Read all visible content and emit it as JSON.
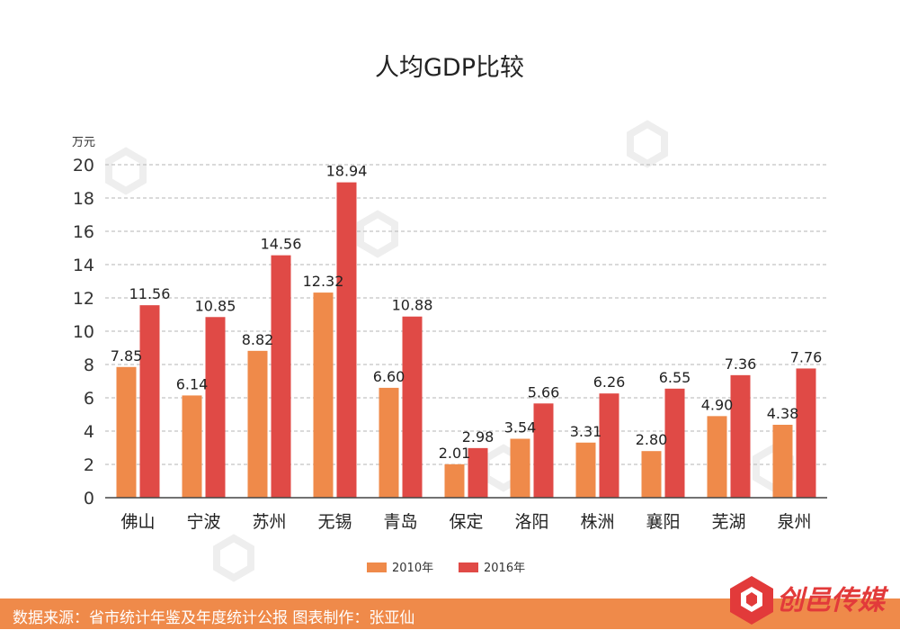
{
  "chart_data": {
    "type": "bar",
    "title": "人均GDP比较",
    "yunit": "万元",
    "ylim": [
      0,
      20
    ],
    "yticks": [
      0,
      2,
      4,
      6,
      8,
      10,
      12,
      14,
      16,
      18,
      20
    ],
    "grid": true,
    "legend_position": "bottom-center",
    "categories": [
      "佛山",
      "宁波",
      "苏州",
      "无锡",
      "青岛",
      "保定",
      "洛阳",
      "株洲",
      "襄阳",
      "芜湖",
      "泉州"
    ],
    "series": [
      {
        "name": "2010年",
        "color": "#ef8a4a",
        "values": [
          7.85,
          6.14,
          8.82,
          12.32,
          6.6,
          2.01,
          3.54,
          3.31,
          2.8,
          4.9,
          4.38
        ],
        "labels": [
          "7.85",
          "6.14",
          "8.82",
          "12.32",
          "6.60",
          "2.01",
          "3.54",
          "3.31",
          "2.80",
          "4.90",
          "4.38"
        ]
      },
      {
        "name": "2016年",
        "color": "#e04a46",
        "values": [
          11.56,
          10.85,
          14.56,
          18.94,
          10.88,
          2.98,
          5.66,
          6.26,
          6.55,
          7.36,
          7.76
        ],
        "labels": [
          "11.56",
          "10.85",
          "14.56",
          "18.94",
          "10.88",
          "2.98",
          "5.66",
          "6.26",
          "6.55",
          "7.36",
          "7.76"
        ]
      }
    ]
  },
  "footer": {
    "source_text": "数据来源：省市统计年鉴及年度统计公报  图表制作：张亚仙"
  },
  "brand": {
    "logo_text": "创邑传媒",
    "accent_color": "#e23a3a"
  }
}
